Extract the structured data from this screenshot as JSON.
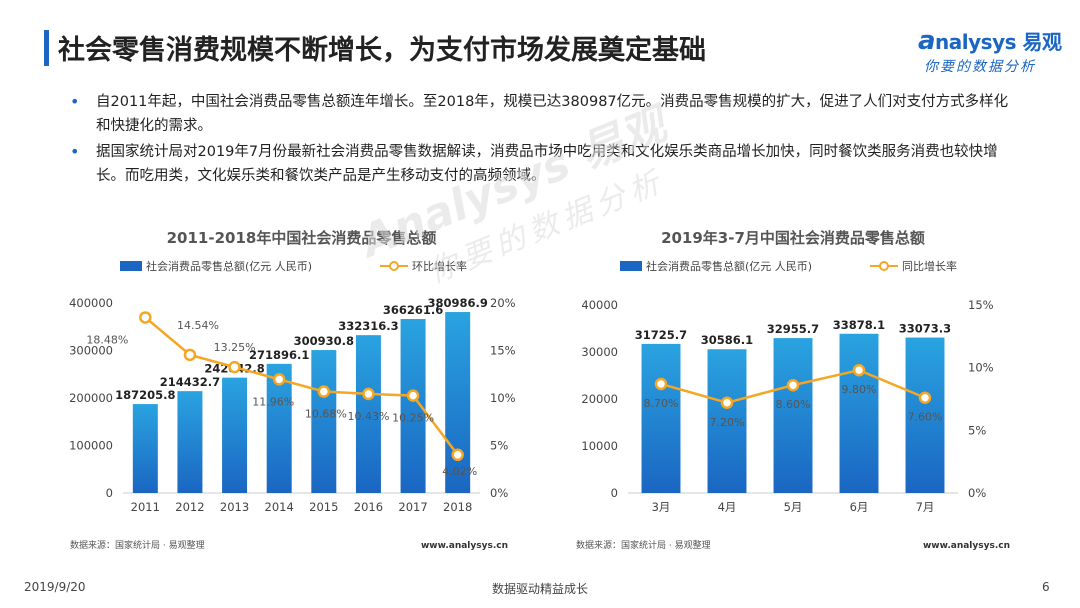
{
  "header": {
    "title": "社会零售消费规模不断增长，为支付市场发展奠定基础",
    "logo_top": "nalysys 易观",
    "logo_bottom": "你要的数据分析"
  },
  "bullets": [
    "自2011年起，中国社会消费品零售总额连年增长。至2018年，规模已达380987亿元。消费品零售规模的扩大，促进了人们对支付方式多样化和快捷化的需求。",
    "据国家统计局对2019年7月份最新社会消费品零售数据解读，消费品市场中吃用类和文化娱乐类商品增长加快，同时餐饮类服务消费也较快增长。而吃用类，文化娱乐类和餐饮类产品是产生移动支付的高频领域。"
  ],
  "chart_data": [
    {
      "type": "bar",
      "title": "2011-2018年中国社会消费品零售总额",
      "categories": [
        "2011",
        "2012",
        "2013",
        "2014",
        "2015",
        "2016",
        "2017",
        "2018"
      ],
      "series": [
        {
          "name": "社会消费品零售总额(亿元 人民币)",
          "type": "bar",
          "axis": "left",
          "values": [
            187205.8,
            214432.7,
            242842.8,
            271896.1,
            300930.8,
            332316.3,
            366261.6,
            380986.9
          ],
          "labels": [
            "187205.8",
            "214432.7",
            "242842.8",
            "271896.1",
            "300930.8",
            "332316.3",
            "366261.6",
            "380986.9"
          ]
        },
        {
          "name": "环比增长率",
          "type": "line",
          "axis": "right",
          "values": [
            18.48,
            14.54,
            13.25,
            11.96,
            10.68,
            10.43,
            10.25,
            4.02
          ],
          "labels": [
            "18.48%",
            "14.54%",
            "13.25%",
            "11.96%",
            "10.68%",
            "10.43%",
            "10.25%",
            "4.02%"
          ]
        }
      ],
      "ylim_left": [
        0,
        400000
      ],
      "yticks_left": [
        "0",
        "100000",
        "200000",
        "300000",
        "400000"
      ],
      "ylim_right": [
        0,
        20
      ],
      "yticks_right": [
        "0%",
        "5%",
        "10%",
        "15%",
        "20%"
      ],
      "legend_position": "top",
      "grid": false,
      "source": "数据来源：国家统计局 · 易观整理",
      "site": "www.analysys.cn"
    },
    {
      "type": "bar",
      "title": "2019年3-7月中国社会消费品零售总额",
      "categories": [
        "3月",
        "4月",
        "5月",
        "6月",
        "7月"
      ],
      "series": [
        {
          "name": "社会消费品零售总额(亿元 人民币)",
          "type": "bar",
          "axis": "left",
          "values": [
            31725.7,
            30586.1,
            32955.7,
            33878.1,
            33073.3
          ],
          "labels": [
            "31725.7",
            "30586.1",
            "32955.7",
            "33878.1",
            "33073.3"
          ]
        },
        {
          "name": "同比增长率",
          "type": "line",
          "axis": "right",
          "values": [
            8.7,
            7.2,
            8.6,
            9.8,
            7.6
          ],
          "labels": [
            "8.70%",
            "7.20%",
            "8.60%",
            "9.80%",
            "7.60%"
          ]
        }
      ],
      "ylim_left": [
        0,
        40000
      ],
      "yticks_left": [
        "0",
        "10000",
        "20000",
        "30000",
        "40000"
      ],
      "ylim_right": [
        0,
        15
      ],
      "yticks_right": [
        "0%",
        "5%",
        "10%",
        "15%"
      ],
      "legend_position": "top",
      "grid": false,
      "source": "数据来源：国家统计局 · 易观整理",
      "site": "www.analysys.cn"
    }
  ],
  "colors": {
    "accent": "#1a66c2",
    "bar_top": "#2aa3e0",
    "bar_bottom": "#1a66c2",
    "line": "#f5a623"
  },
  "watermark": {
    "line1": "Analysys 易观",
    "line2": "你要的数据分析"
  },
  "footer": {
    "date": "2019/9/20",
    "center": "数据驱动精益成长",
    "page": "6"
  }
}
